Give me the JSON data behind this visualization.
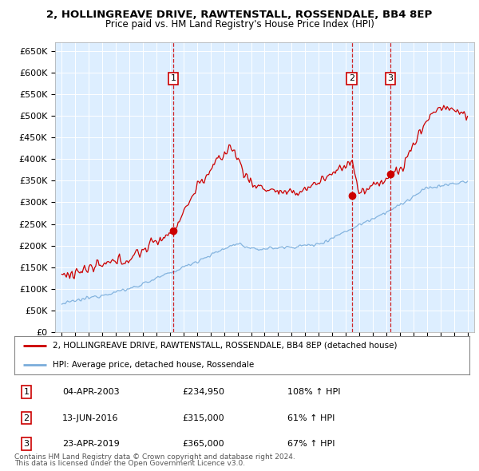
{
  "title1": "2, HOLLINGREAVE DRIVE, RAWTENSTALL, ROSSENDALE, BB4 8EP",
  "title2": "Price paid vs. HM Land Registry's House Price Index (HPI)",
  "plot_bg": "#ddeeff",
  "red_color": "#cc0000",
  "blue_color": "#7aaddb",
  "ylim": [
    0,
    670000
  ],
  "yticks": [
    0,
    50000,
    100000,
    150000,
    200000,
    250000,
    300000,
    350000,
    400000,
    450000,
    500000,
    550000,
    600000,
    650000
  ],
  "ytick_labels": [
    "£0",
    "£50K",
    "£100K",
    "£150K",
    "£200K",
    "£250K",
    "£300K",
    "£350K",
    "£400K",
    "£450K",
    "£500K",
    "£550K",
    "£600K",
    "£650K"
  ],
  "sale1_date": 2003.25,
  "sale1_price": 234950,
  "sale1_label": "1",
  "sale2_date": 2016.44,
  "sale2_price": 315000,
  "sale2_label": "2",
  "sale3_date": 2019.3,
  "sale3_price": 365000,
  "sale3_label": "3",
  "legend_red": "2, HOLLINGREAVE DRIVE, RAWTENSTALL, ROSSENDALE, BB4 8EP (detached house)",
  "legend_blue": "HPI: Average price, detached house, Rossendale",
  "footer1": "Contains HM Land Registry data © Crown copyright and database right 2024.",
  "footer2": "This data is licensed under the Open Government Licence v3.0.",
  "table_rows": [
    [
      "1",
      "04-APR-2003",
      "£234,950",
      "108% ↑ HPI"
    ],
    [
      "2",
      "13-JUN-2016",
      "£315,000",
      "61% ↑ HPI"
    ],
    [
      "3",
      "23-APR-2019",
      "£365,000",
      "67% ↑ HPI"
    ]
  ]
}
